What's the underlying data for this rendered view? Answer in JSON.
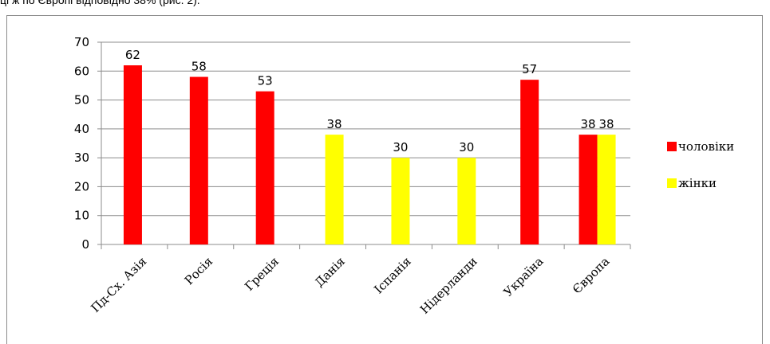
{
  "caption": "ці ж по Європі відповідно 38% (рис. 2).",
  "chart_data": {
    "type": "bar",
    "categories": [
      "Пд-Сх. Азія",
      "Росія",
      "Греція",
      "Данія",
      "Іспанія",
      "Нідерланди",
      "Україна",
      "Європа"
    ],
    "series": [
      {
        "name": "чоловіки",
        "color": "#ff0000",
        "values": [
          62,
          58,
          53,
          null,
          null,
          null,
          57,
          38
        ]
      },
      {
        "name": "жінки",
        "color": "#ffff00",
        "values": [
          null,
          null,
          null,
          38,
          30,
          30,
          null,
          38
        ]
      }
    ],
    "ylim": [
      0,
      70
    ],
    "yticks": [
      0,
      10,
      20,
      30,
      40,
      50,
      60,
      70
    ],
    "grid": true,
    "legend": "right",
    "data_labels": true
  }
}
